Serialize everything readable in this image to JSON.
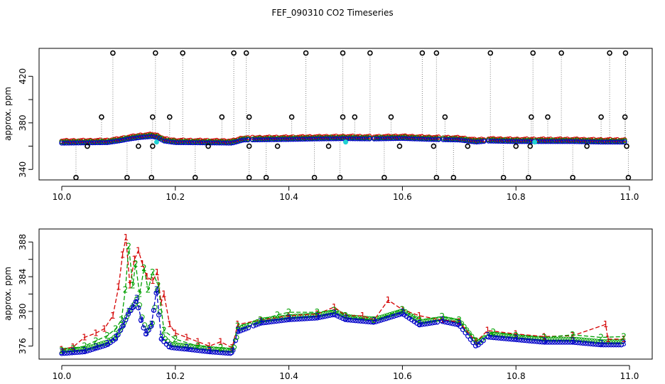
{
  "title": "FEF_090310  CO2 Timeseries",
  "colors": {
    "black": "#000000",
    "red": "#d40000",
    "green": "#00a000",
    "blue": "#0000c8",
    "cyan": "#22d3d3",
    "grey": "#808080"
  },
  "chart_data": [
    {
      "type": "scatter",
      "title": "",
      "xlabel": "",
      "ylabel": "approx. ppm",
      "xlim": [
        9.96,
        11.04
      ],
      "ylim": [
        331,
        444
      ],
      "xticks": [
        10.0,
        10.2,
        10.4,
        10.6,
        10.8,
        11.0
      ],
      "xtick_labels": [
        "10.0",
        "10.2",
        "10.4",
        "10.6",
        "10.8",
        "11.0"
      ],
      "yticks": [
        340,
        360,
        380,
        400,
        420
      ],
      "ytick_labels": [
        "340",
        "",
        "380",
        "",
        "420"
      ],
      "base_line": {
        "description_points": [
          [
            10.0,
            375.5
          ],
          [
            10.05,
            375.8
          ],
          [
            10.08,
            376.0
          ],
          [
            10.1,
            377.5
          ],
          [
            10.12,
            379.5
          ],
          [
            10.14,
            381.0
          ],
          [
            10.16,
            381.8
          ],
          [
            10.17,
            380.5
          ],
          [
            10.18,
            377.5
          ],
          [
            10.2,
            376.0
          ],
          [
            10.25,
            375.8
          ],
          [
            10.3,
            375.5
          ],
          [
            10.32,
            378.5
          ],
          [
            10.4,
            379.0
          ],
          [
            10.45,
            379.5
          ],
          [
            10.5,
            379.8
          ],
          [
            10.55,
            379.5
          ],
          [
            10.6,
            380.0
          ],
          [
            10.65,
            379.0
          ],
          [
            10.7,
            378.5
          ],
          [
            10.73,
            376.5
          ],
          [
            10.75,
            377.5
          ],
          [
            10.8,
            377.0
          ],
          [
            10.85,
            377.0
          ],
          [
            10.9,
            377.0
          ],
          [
            10.95,
            376.5
          ],
          [
            10.99,
            376.5
          ]
        ]
      },
      "spikes_high": [
        10.09,
        10.165,
        10.213,
        10.303,
        10.325,
        10.43,
        10.495,
        10.543,
        10.635,
        10.66,
        10.755,
        10.83,
        10.88,
        10.965,
        10.993
      ],
      "spikes_low": [
        10.025,
        10.115,
        10.158,
        10.235,
        10.33,
        10.36,
        10.445,
        10.49,
        10.568,
        10.66,
        10.69,
        10.778,
        10.822,
        10.9,
        10.998
      ],
      "spikes_mid_high": [
        10.07,
        10.16,
        10.19,
        10.282,
        10.33,
        10.405,
        10.495,
        10.516,
        10.58,
        10.675,
        10.827,
        10.856,
        10.95,
        10.992
      ],
      "spikes_mid_low": [
        10.045,
        10.135,
        10.16,
        10.258,
        10.33,
        10.38,
        10.47,
        10.595,
        10.655,
        10.715,
        10.8,
        10.825,
        10.925,
        10.995
      ],
      "cyan_points": [
        [
          10.167,
          363.5
        ],
        [
          10.5,
          363.5
        ],
        [
          10.833,
          363.5
        ]
      ]
    },
    {
      "type": "line",
      "title": "",
      "xlabel": "",
      "ylabel": "approx. ppm",
      "xlim": [
        9.96,
        11.04
      ],
      "ylim": [
        374.5,
        389.5
      ],
      "xticks": [
        10.0,
        10.2,
        10.4,
        10.6,
        10.8,
        11.0
      ],
      "xtick_labels": [
        "10.0",
        "10.2",
        "10.4",
        "10.6",
        "10.8",
        "11.0"
      ],
      "yticks": [
        376,
        378,
        380,
        382,
        384,
        386,
        388
      ],
      "ytick_labels": [
        "376",
        "",
        "380",
        "",
        "384",
        "",
        "388"
      ],
      "series": [
        {
          "name": "1",
          "color": "#d40000",
          "points": [
            [
              10.0,
              375.6
            ],
            [
              10.02,
              375.9
            ],
            [
              10.04,
              377.0
            ],
            [
              10.06,
              377.5
            ],
            [
              10.075,
              378.0
            ],
            [
              10.09,
              379.5
            ],
            [
              10.1,
              382.8
            ],
            [
              10.107,
              386.5
            ],
            [
              10.113,
              388.5
            ],
            [
              10.12,
              383.0
            ],
            [
              10.128,
              386.0
            ],
            [
              10.135,
              387.0
            ],
            [
              10.142,
              385.5
            ],
            [
              10.15,
              384.0
            ],
            [
              10.16,
              383.5
            ],
            [
              10.168,
              384.5
            ],
            [
              10.175,
              381.0
            ],
            [
              10.18,
              382.0
            ],
            [
              10.19,
              378.5
            ],
            [
              10.2,
              377.5
            ],
            [
              10.22,
              377.0
            ],
            [
              10.24,
              376.5
            ],
            [
              10.26,
              376.0
            ],
            [
              10.28,
              376.5
            ],
            [
              10.3,
              375.8
            ],
            [
              10.31,
              378.5
            ],
            [
              10.35,
              379.0
            ],
            [
              10.4,
              379.5
            ],
            [
              10.45,
              379.7
            ],
            [
              10.48,
              380.5
            ],
            [
              10.5,
              379.5
            ],
            [
              10.53,
              379.5
            ],
            [
              10.55,
              379.0
            ],
            [
              10.575,
              381.3
            ],
            [
              10.6,
              380.2
            ],
            [
              10.63,
              379.5
            ],
            [
              10.67,
              379.0
            ],
            [
              10.7,
              378.8
            ],
            [
              10.73,
              376.5
            ],
            [
              10.75,
              377.8
            ],
            [
              10.8,
              377.4
            ],
            [
              10.85,
              377.1
            ],
            [
              10.9,
              377.2
            ],
            [
              10.958,
              378.5
            ],
            [
              10.962,
              376.8
            ],
            [
              10.99,
              376.8
            ]
          ]
        },
        {
          "name": "2",
          "color": "#00a000",
          "points": [
            [
              10.0,
              375.5
            ],
            [
              10.02,
              375.7
            ],
            [
              10.04,
              376.0
            ],
            [
              10.06,
              376.6
            ],
            [
              10.08,
              377.2
            ],
            [
              10.095,
              378.0
            ],
            [
              10.105,
              379.0
            ],
            [
              10.112,
              382.5
            ],
            [
              10.118,
              387.5
            ],
            [
              10.125,
              383.0
            ],
            [
              10.13,
              385.5
            ],
            [
              10.137,
              382.0
            ],
            [
              10.145,
              385.0
            ],
            [
              10.152,
              382.5
            ],
            [
              10.16,
              384.5
            ],
            [
              10.17,
              383.0
            ],
            [
              10.18,
              377.8
            ],
            [
              10.2,
              376.8
            ],
            [
              10.24,
              376.0
            ],
            [
              10.28,
              375.8
            ],
            [
              10.3,
              375.6
            ],
            [
              10.31,
              378.3
            ],
            [
              10.35,
              379.0
            ],
            [
              10.38,
              379.6
            ],
            [
              10.4,
              379.9
            ],
            [
              10.45,
              379.9
            ],
            [
              10.48,
              380.1
            ],
            [
              10.5,
              379.5
            ],
            [
              10.55,
              379.0
            ],
            [
              10.6,
              380.2
            ],
            [
              10.63,
              379.0
            ],
            [
              10.67,
              379.4
            ],
            [
              10.7,
              379.0
            ],
            [
              10.73,
              376.6
            ],
            [
              10.76,
              377.6
            ],
            [
              10.8,
              377.2
            ],
            [
              10.85,
              377.0
            ],
            [
              10.9,
              377.3
            ],
            [
              10.95,
              377.0
            ],
            [
              10.99,
              377.1
            ]
          ]
        },
        {
          "name": "3",
          "color": "#0000c8",
          "points": [
            [
              10.0,
              375.3
            ],
            [
              10.02,
              375.4
            ],
            [
              10.04,
              375.5
            ],
            [
              10.06,
              375.9
            ],
            [
              10.08,
              376.3
            ],
            [
              10.095,
              377.0
            ],
            [
              10.108,
              378.5
            ],
            [
              10.118,
              380.0
            ],
            [
              10.125,
              380.5
            ],
            [
              10.132,
              381.5
            ],
            [
              10.14,
              379.0
            ],
            [
              10.148,
              377.5
            ],
            [
              10.158,
              378.5
            ],
            [
              10.167,
              382.5
            ],
            [
              10.175,
              377.0
            ],
            [
              10.19,
              376.0
            ],
            [
              10.22,
              375.8
            ],
            [
              10.26,
              375.5
            ],
            [
              10.3,
              375.3
            ],
            [
              10.31,
              377.8
            ],
            [
              10.35,
              378.8
            ],
            [
              10.4,
              379.2
            ],
            [
              10.45,
              379.4
            ],
            [
              10.48,
              379.8
            ],
            [
              10.5,
              379.2
            ],
            [
              10.55,
              378.9
            ],
            [
              10.6,
              379.9
            ],
            [
              10.63,
              378.6
            ],
            [
              10.67,
              379.0
            ],
            [
              10.7,
              378.6
            ],
            [
              10.73,
              376.1
            ],
            [
              10.75,
              377.2
            ],
            [
              10.8,
              376.9
            ],
            [
              10.85,
              376.6
            ],
            [
              10.9,
              376.6
            ],
            [
              10.95,
              376.3
            ],
            [
              10.99,
              376.3
            ]
          ]
        }
      ]
    }
  ]
}
